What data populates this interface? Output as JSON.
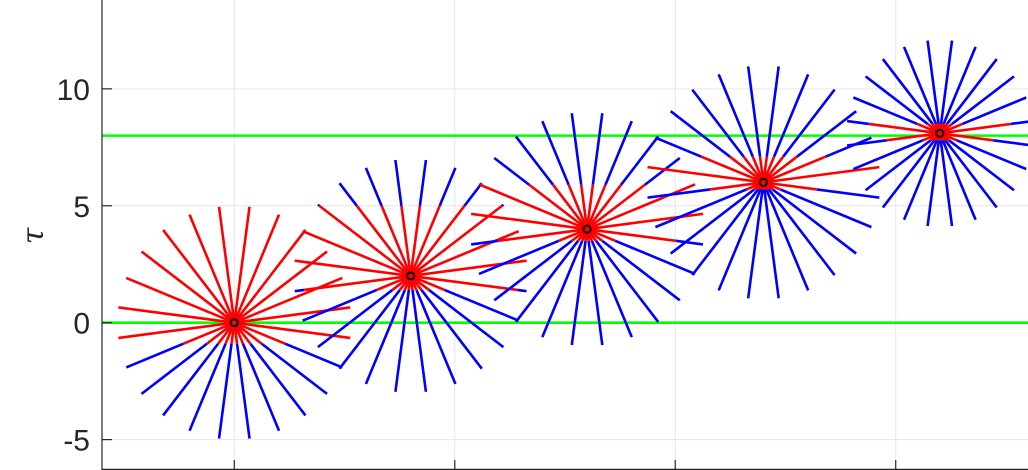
{
  "chart_data": {
    "type": "line",
    "ylabel": "τ",
    "ylim": [
      -6.3,
      13.8
    ],
    "xlim": [
      -0.6,
      3.6
    ],
    "x_ticks": [
      0,
      1,
      2,
      3
    ],
    "y_ticks": [
      -5,
      0,
      5,
      10
    ],
    "y_tick_labels": [
      "-5",
      "0",
      "5",
      "10"
    ],
    "grid": true,
    "horizontal_lines": [
      {
        "y": 0,
        "color": "#00ff00"
      },
      {
        "y": 8,
        "color": "#00ff00"
      }
    ],
    "series": [
      {
        "center": {
          "x": 0.0,
          "y": 0.0
        },
        "radius": 5.0,
        "red_up_to": 5.0,
        "red_down_to": 0.9
      },
      {
        "center": {
          "x": 0.8,
          "y": 2.0
        },
        "radius": 5.0,
        "red_up_to": 3.0,
        "red_down_to": 0.6
      },
      {
        "center": {
          "x": 1.6,
          "y": 4.0
        },
        "radius": 5.0,
        "red_up_to": 1.9,
        "red_down_to": 0.5
      },
      {
        "center": {
          "x": 2.4,
          "y": 6.0
        },
        "radius": 5.0,
        "red_up_to": 1.1,
        "red_down_to": 0.3
      },
      {
        "center": {
          "x": 3.2,
          "y": 8.1
        },
        "radius": 4.0,
        "red_up_to": 0.4,
        "red_down_to": 0.3
      }
    ],
    "rays_per_burst": 24,
    "colors": {
      "inside": "#ff0000",
      "outside": "#0000ff",
      "center_marker": "#000000",
      "reference_line": "#00ff00",
      "grid": "#e6e6e6",
      "axis": "#262626"
    }
  }
}
